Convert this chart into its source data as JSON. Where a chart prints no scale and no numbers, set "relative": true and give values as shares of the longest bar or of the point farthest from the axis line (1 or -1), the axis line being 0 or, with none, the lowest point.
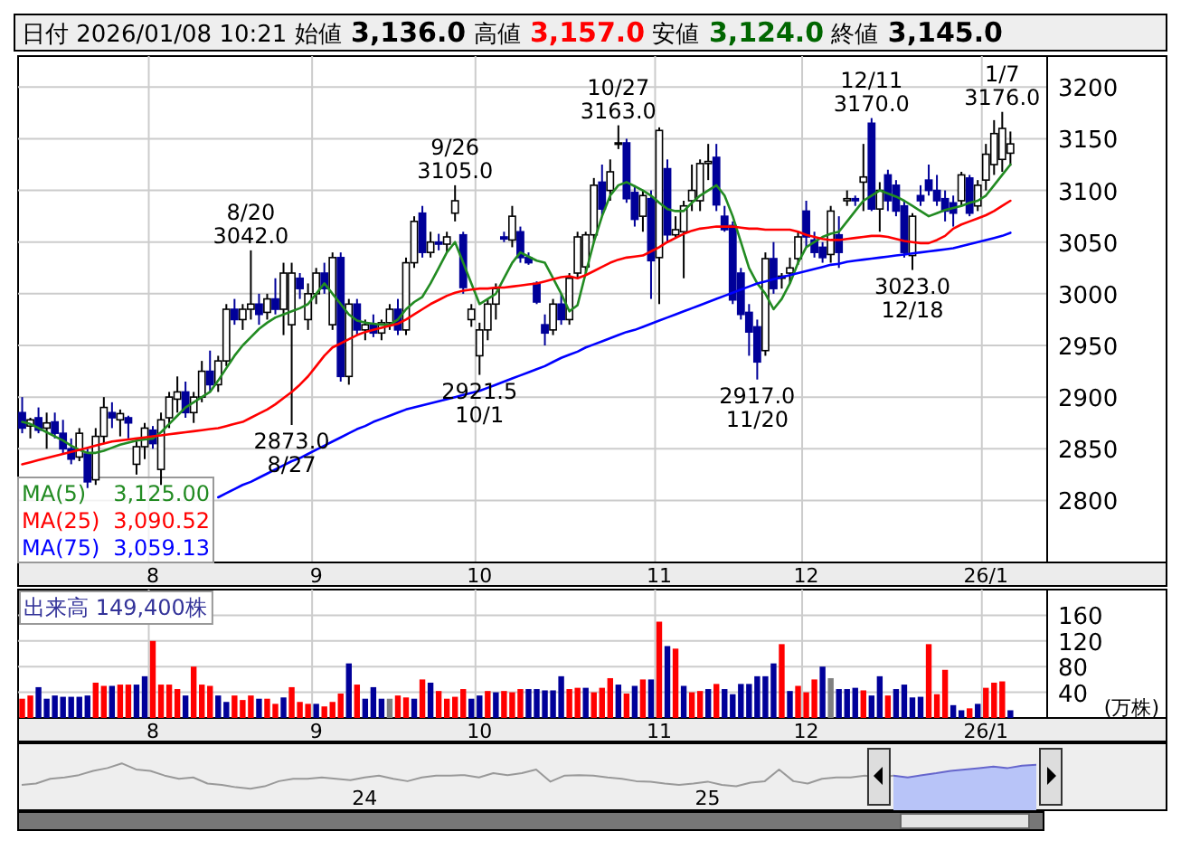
{
  "chart_data": [
    {
      "type": "candlestick",
      "title": "日付 2026/01/08 10:21 始値 3,136.0 高値 3,157.0 安値 3,124.0 終値 3,145.0",
      "categories": [
        null,
        null,
        null,
        null,
        null,
        null,
        null,
        null,
        null,
        null,
        null,
        null,
        null,
        null,
        null,
        null,
        "8",
        null,
        null,
        null,
        null,
        null,
        null,
        null,
        null,
        null,
        null,
        null,
        null,
        null,
        null,
        null,
        null,
        null,
        null,
        null,
        "9",
        null,
        null,
        null,
        null,
        null,
        null,
        null,
        null,
        null,
        null,
        null,
        null,
        null,
        null,
        null,
        null,
        null,
        null,
        null,
        "10",
        null,
        null,
        null,
        null,
        null,
        null,
        null,
        null,
        null,
        null,
        null,
        null,
        null,
        null,
        null,
        null,
        null,
        null,
        null,
        null,
        null,
        "11",
        null,
        null,
        null,
        null,
        null,
        null,
        null,
        null,
        null,
        null,
        null,
        null,
        null,
        null,
        null,
        null,
        null,
        "12",
        null,
        null,
        null,
        null,
        null,
        null,
        null,
        null,
        null,
        null,
        null,
        null,
        null,
        null,
        null,
        null,
        null,
        null,
        null,
        null,
        null,
        "26/1",
        null,
        null,
        null
      ],
      "ohlc": [
        [
          2885,
          2900,
          2865,
          2870
        ],
        [
          2872,
          2880,
          2860,
          2878
        ],
        [
          2880,
          2890,
          2865,
          2868
        ],
        [
          2870,
          2885,
          2850,
          2875
        ],
        [
          2876,
          2885,
          2860,
          2865
        ],
        [
          2865,
          2878,
          2845,
          2850
        ],
        [
          2850,
          2860,
          2835,
          2840
        ],
        [
          2842,
          2870,
          2838,
          2865
        ],
        [
          2845,
          2850,
          2812,
          2818
        ],
        [
          2820,
          2870,
          2815,
          2862
        ],
        [
          2862,
          2900,
          2855,
          2890
        ],
        [
          2885,
          2895,
          2870,
          2880
        ],
        [
          2878,
          2888,
          2862,
          2884
        ],
        [
          2880,
          2882,
          2860,
          2875
        ],
        [
          2835,
          2858,
          2825,
          2852
        ],
        [
          2852,
          2875,
          2840,
          2870
        ],
        [
          2868,
          2872,
          2850,
          2855
        ],
        [
          2830,
          2885,
          2815,
          2878
        ],
        [
          2880,
          2905,
          2870,
          2900
        ],
        [
          2898,
          2920,
          2885,
          2905
        ],
        [
          2905,
          2915,
          2880,
          2885
        ],
        [
          2885,
          2905,
          2875,
          2900
        ],
        [
          2900,
          2935,
          2895,
          2925
        ],
        [
          2925,
          2945,
          2905,
          2912
        ],
        [
          2912,
          2940,
          2905,
          2935
        ],
        [
          2935,
          2990,
          2930,
          2985
        ],
        [
          2985,
          2995,
          2970,
          2975
        ],
        [
          2975,
          2990,
          2965,
          2985
        ],
        [
          2985,
          3042,
          2975,
          2990
        ],
        [
          2990,
          3000,
          2970,
          2980
        ],
        [
          2982,
          3000,
          2975,
          2995
        ],
        [
          2995,
          3015,
          2980,
          2985
        ],
        [
          2985,
          3030,
          2960,
          3020
        ],
        [
          2970,
          3030,
          2873,
          3020
        ],
        [
          3015,
          3020,
          2995,
          3005
        ],
        [
          2975,
          3010,
          2965,
          3000
        ],
        [
          3000,
          3025,
          2990,
          3020
        ],
        [
          3020,
          3030,
          3000,
          3005
        ],
        [
          2970,
          3040,
          2965,
          3035
        ],
        [
          3035,
          3040,
          2915,
          2920
        ],
        [
          2920,
          2995,
          2912,
          2990
        ],
        [
          2990,
          2995,
          2960,
          2965
        ],
        [
          2965,
          2975,
          2955,
          2970
        ],
        [
          2970,
          2980,
          2958,
          2962
        ],
        [
          2962,
          2975,
          2955,
          2972
        ],
        [
          2972,
          2990,
          2965,
          2985
        ],
        [
          2985,
          2995,
          2960,
          2965
        ],
        [
          2965,
          3035,
          2960,
          3030
        ],
        [
          3030,
          3075,
          3025,
          3070
        ],
        [
          3078,
          3085,
          3035,
          3040
        ],
        [
          3040,
          3060,
          3035,
          3050
        ],
        [
          3050,
          3058,
          3042,
          3048
        ],
        [
          3048,
          3060,
          3040,
          3055
        ],
        [
          3078,
          3105,
          3070,
          3090
        ],
        [
          3057,
          3060,
          3000,
          3006
        ],
        [
          2975,
          2990,
          2968,
          2985
        ],
        [
          2940,
          2972,
          2921.5,
          2965
        ],
        [
          2965,
          2995,
          2955,
          2990
        ],
        [
          2990,
          3010,
          2975,
          3005
        ],
        [
          3055,
          3060,
          3050,
          3053
        ],
        [
          3052,
          3085,
          3045,
          3075
        ],
        [
          3060,
          3065,
          3030,
          3035
        ],
        [
          3035,
          3040,
          3028,
          3030
        ],
        [
          3010,
          3012,
          2990,
          2992
        ],
        [
          2970,
          2980,
          2950,
          2962
        ],
        [
          2965,
          2995,
          2960,
          2990
        ],
        [
          2990,
          3000,
          2970,
          2975
        ],
        [
          2975,
          3020,
          2970,
          3015
        ],
        [
          3020,
          3060,
          3015,
          3055
        ],
        [
          3026,
          3060,
          3020,
          3057
        ],
        [
          3057,
          3112,
          3050,
          3105
        ],
        [
          3108,
          3125,
          3075,
          3082
        ],
        [
          3100,
          3130,
          3090,
          3118
        ],
        [
          3145,
          3163,
          3140,
          3146
        ],
        [
          3146,
          3150,
          3088,
          3092
        ],
        [
          3098,
          3105,
          3065,
          3072
        ],
        [
          3075,
          3100,
          3060,
          3095
        ],
        [
          3092,
          3100,
          2995,
          3032
        ],
        [
          3035,
          3161,
          2990,
          3158
        ],
        [
          3121,
          3130,
          3050,
          3057
        ],
        [
          3057,
          3075,
          3055,
          3062
        ],
        [
          3060,
          3090,
          3015,
          3085
        ],
        [
          3090,
          3125,
          3080,
          3100
        ],
        [
          3090,
          3130,
          3080,
          3126
        ],
        [
          3126,
          3145,
          3110,
          3128
        ],
        [
          3132,
          3145,
          3080,
          3086
        ],
        [
          3075,
          3085,
          3060,
          3062
        ],
        [
          3066,
          3070,
          2990,
          2994
        ],
        [
          3020,
          3025,
          2975,
          2980
        ],
        [
          2982,
          2990,
          2940,
          2963
        ],
        [
          2968,
          2975,
          2917,
          2934
        ],
        [
          2945,
          3040,
          2940,
          3034
        ],
        [
          3034,
          3050,
          3000,
          3005
        ],
        [
          3015,
          3020,
          3005,
          3017
        ],
        [
          3020,
          3035,
          3010,
          3025
        ],
        [
          3034,
          3060,
          3028,
          3055
        ],
        [
          3080,
          3090,
          3045,
          3055
        ],
        [
          3052,
          3060,
          3035,
          3040
        ],
        [
          3045,
          3050,
          3030,
          3035
        ],
        [
          3038,
          3085,
          3030,
          3080
        ],
        [
          3057,
          3075,
          3025,
          3040
        ],
        [
          3090,
          3100,
          3085,
          3092
        ],
        [
          3092,
          3095,
          3085,
          3090
        ],
        [
          3108,
          3145,
          3080,
          3113
        ],
        [
          3165,
          3170,
          3080,
          3082
        ],
        [
          3082,
          3108,
          3060,
          3100
        ],
        [
          3115,
          3120,
          3080,
          3090
        ],
        [
          3105,
          3110,
          3075,
          3080
        ],
        [
          3085,
          3090,
          3035,
          3040
        ],
        [
          3037,
          3078,
          3023,
          3075
        ],
        [
          3095,
          3105,
          3085,
          3090
        ],
        [
          3110,
          3125,
          3095,
          3100
        ],
        [
          3100,
          3115,
          3085,
          3090
        ],
        [
          3092,
          3100,
          3070,
          3080
        ],
        [
          3088,
          3095,
          3065,
          3078
        ],
        [
          3090,
          3118,
          3085,
          3115
        ],
        [
          3112,
          3115,
          3075,
          3078
        ],
        [
          3085,
          3110,
          3080,
          3105
        ],
        [
          3110,
          3145,
          3100,
          3135
        ],
        [
          3125,
          3168,
          3115,
          3155
        ],
        [
          3130,
          3176,
          3118,
          3160
        ],
        [
          3136,
          3157,
          3124,
          3145
        ]
      ],
      "series": [
        {
          "name": "MA(5)",
          "type": "line",
          "color": "#228b22",
          "values": [
            2876,
            2874,
            2870,
            2866,
            2862,
            2858,
            2853,
            2849,
            2846,
            2846,
            2848,
            2851,
            2854,
            2856,
            2858,
            2859,
            2860,
            2866,
            2874,
            2882,
            2890,
            2895,
            2900,
            2905,
            2916,
            2928,
            2940,
            2950,
            2958,
            2966,
            2972,
            2977,
            2980,
            2983,
            2986,
            2990,
            3000,
            3010,
            3000,
            2990,
            2980,
            2974,
            2972,
            2971,
            2970,
            2970,
            2975,
            2985,
            2992,
            2997,
            3010,
            3025,
            3040,
            3050,
            3030,
            3010,
            2990,
            2995,
            3000,
            3015,
            3030,
            3040,
            3036,
            3032,
            3030,
            3015,
            3000,
            2983,
            2989,
            3020,
            3050,
            3075,
            3095,
            3105,
            3108,
            3104,
            3100,
            3095,
            3088,
            3082,
            3080,
            3080,
            3088,
            3095,
            3100,
            3105,
            3095,
            3075,
            3050,
            3025,
            3010,
            3000,
            2985,
            2995,
            3010,
            3030,
            3045,
            3050,
            3055,
            3058,
            3060,
            3070,
            3080,
            3090,
            3095,
            3100,
            3097,
            3094,
            3090,
            3085,
            3080,
            3075,
            3078,
            3081,
            3083,
            3085,
            3088,
            3090,
            3095,
            3105,
            3115,
            3125
          ]
        },
        {
          "name": "MA(25)",
          "type": "line",
          "color": "#ff0000",
          "values": [
            2835,
            2837,
            2839,
            2841,
            2843,
            2845,
            2847,
            2849,
            2851,
            2853,
            2855,
            2857,
            2858,
            2859,
            2860,
            2861,
            2862,
            2863,
            2864,
            2865,
            2866,
            2867,
            2868,
            2869,
            2870,
            2872,
            2874,
            2876,
            2880,
            2884,
            2888,
            2893,
            2899,
            2905,
            2912,
            2920,
            2930,
            2940,
            2948,
            2952,
            2956,
            2960,
            2963,
            2965,
            2967,
            2969,
            2971,
            2975,
            2980,
            2985,
            2990,
            2994,
            2998,
            3001,
            3003,
            3004,
            3005,
            3005,
            3006,
            3006,
            3007,
            3008,
            3009,
            3010,
            3012,
            3014,
            3016,
            3017,
            3015,
            3018,
            3022,
            3026,
            3030,
            3033,
            3035,
            3036,
            3037,
            3041,
            3045,
            3050,
            3054,
            3058,
            3061,
            3063,
            3064,
            3065,
            3065,
            3065,
            3064,
            3063,
            3063,
            3062,
            3062,
            3062,
            3062,
            3060,
            3057,
            3055,
            3053,
            3052,
            3052,
            3053,
            3054,
            3055,
            3056,
            3056,
            3055,
            3053,
            3051,
            3050,
            3049,
            3049,
            3052,
            3056,
            3063,
            3067,
            3070,
            3073,
            3076,
            3080,
            3085,
            3090
          ]
        },
        {
          "name": "MA(75)",
          "type": "line",
          "color": "#0000ff",
          "values": [
            null,
            null,
            null,
            null,
            null,
            null,
            null,
            null,
            null,
            null,
            null,
            null,
            null,
            null,
            null,
            null,
            null,
            null,
            null,
            null,
            null,
            null,
            null,
            null,
            2803,
            2807,
            2811,
            2815,
            2818,
            2822,
            2826,
            2830,
            2834,
            2838,
            2841,
            2845,
            2849,
            2853,
            2857,
            2861,
            2865,
            2869,
            2872,
            2876,
            2879,
            2882,
            2885,
            2888,
            2890,
            2892,
            2894,
            2896,
            2898,
            2900,
            2902,
            2904,
            2906,
            2909,
            2912,
            2915,
            2918,
            2921,
            2924,
            2927,
            2930,
            2934,
            2938,
            2941,
            2944,
            2948,
            2951,
            2954,
            2957,
            2960,
            2963,
            2965,
            2968,
            2971,
            2974,
            2977,
            2980,
            2983,
            2986,
            2989,
            2992,
            2995,
            2998,
            3001,
            3004,
            3007,
            3010,
            3012,
            3014,
            3016,
            3018,
            3020,
            3022,
            3024,
            3026,
            3028,
            3029,
            3031,
            3032,
            3033,
            3034,
            3035,
            3036,
            3037,
            3038,
            3039,
            3040,
            3041,
            3042,
            3043,
            3044,
            3046,
            3048,
            3050,
            3052,
            3054,
            3056,
            3059
          ]
        }
      ],
      "ylim": [
        2740,
        3230
      ],
      "yticks": [
        2800,
        2850,
        2900,
        2950,
        3000,
        3050,
        3100,
        3150,
        3200
      ],
      "grid": true,
      "legend": "bottom left",
      "annotations": [
        {
          "text": "8/20\n3042.0",
          "y": 3042
        },
        {
          "text": "2873.0\n8/27",
          "y": 2873
        },
        {
          "text": "9/26\n3105.0",
          "y": 3105
        },
        {
          "text": "2921.5\n10/1",
          "y": 2921.5
        },
        {
          "text": "10/27\n3163.0",
          "y": 3163
        },
        {
          "text": "2917.0\n11/20",
          "y": 2917
        },
        {
          "text": "12/11\n3170.0",
          "y": 3170
        },
        {
          "text": "3023.0\n12/18",
          "y": 3023
        },
        {
          "text": "1/7\n3176.0",
          "y": 3176
        },
        "3,125.00",
        "3,090.52",
        "3,059.13"
      ]
    },
    {
      "type": "bar",
      "title": "出来高  149,400株",
      "ylabel": "(万株)",
      "categories": [
        null,
        null,
        null,
        null,
        null,
        null,
        null,
        null,
        null,
        null,
        null,
        null,
        null,
        null,
        null,
        null,
        "8",
        null,
        null,
        null,
        null,
        null,
        null,
        null,
        null,
        null,
        null,
        null,
        null,
        null,
        null,
        null,
        null,
        null,
        null,
        null,
        "9",
        null,
        null,
        null,
        null,
        null,
        null,
        null,
        null,
        null,
        null,
        null,
        null,
        null,
        null,
        null,
        null,
        null,
        null,
        null,
        "10",
        null,
        null,
        null,
        null,
        null,
        null,
        null,
        null,
        null,
        null,
        null,
        null,
        null,
        null,
        null,
        null,
        null,
        null,
        null,
        null,
        null,
        "11",
        null,
        null,
        null,
        null,
        null,
        null,
        null,
        null,
        null,
        null,
        null,
        null,
        null,
        null,
        null,
        null,
        null,
        "12",
        null,
        null,
        null,
        null,
        null,
        null,
        null,
        null,
        null,
        null,
        null,
        null,
        null,
        null,
        null,
        null,
        null,
        null,
        null,
        null,
        null,
        "26/1",
        null,
        null,
        null
      ],
      "values": [
        30,
        35,
        48,
        30,
        35,
        33,
        33,
        33,
        35,
        55,
        50,
        50,
        52,
        52,
        52,
        65,
        120,
        52,
        52,
        45,
        35,
        80,
        52,
        50,
        35,
        25,
        35,
        28,
        35,
        30,
        30,
        22,
        32,
        48,
        25,
        22,
        22,
        18,
        25,
        38,
        85,
        52,
        30,
        48,
        30,
        30,
        35,
        32,
        30,
        60,
        55,
        42,
        30,
        33,
        45,
        30,
        35,
        42,
        40,
        42,
        40,
        45,
        45,
        45,
        43,
        43,
        65,
        45,
        47,
        47,
        40,
        47,
        62,
        52,
        38,
        50,
        60,
        60,
        150,
        112,
        108,
        50,
        40,
        42,
        45,
        53,
        45,
        37,
        53,
        53,
        65,
        65,
        85,
        115,
        42,
        50,
        40,
        60,
        80,
        62,
        45,
        45,
        47,
        43,
        35,
        65,
        35,
        45,
        52,
        32,
        33,
        115,
        37,
        75,
        20,
        12,
        15,
        22,
        47,
        55,
        57,
        12
      ],
      "colors": [
        "#ff0000",
        "#ff0000",
        "#000099",
        "#000099",
        "#000099",
        "#000099",
        "#000099",
        "#000099",
        "#000099",
        "#ff0000",
        "#ff0000",
        "#000099",
        "#ff0000",
        "#ff0000",
        "#000099",
        "#000099",
        "#ff0000",
        "#ff0000",
        "#ff0000",
        "#ff0000",
        "#000099",
        "#ff0000",
        "#ff0000",
        "#ff0000",
        "#000099",
        "#000099",
        "#ff0000",
        "#ff0000",
        "#ff0000",
        "#000099",
        "#ff0000",
        "#ff0000",
        "#000099",
        "#ff0000",
        "#ff0000",
        "#ff0000",
        "#000099",
        "#ff0000",
        "#ff0000",
        "#ff0000",
        "#000099",
        "#ff0000",
        "#000099",
        "#000099",
        "#000099",
        "#808080",
        "#ff0000",
        "#ff0000",
        "#000099",
        "#ff0000",
        "#000099",
        "#ff0000",
        "#ff0000",
        "#ff0000",
        "#ff0000",
        "#000099",
        "#000099",
        "#ff0000",
        "#000099",
        "#ff0000",
        "#ff0000",
        "#ff0000",
        "#000099",
        "#000099",
        "#000099",
        "#000099",
        "#000099",
        "#ff0000",
        "#ff0000",
        "#000099",
        "#ff0000",
        "#ff0000",
        "#ff0000",
        "#000099",
        "#ff0000",
        "#000099",
        "#ff0000",
        "#000099",
        "#ff0000",
        "#000099",
        "#ff0000",
        "#000099",
        "#ff0000",
        "#ff0000",
        "#000099",
        "#ff0000",
        "#000099",
        "#000099",
        "#000099",
        "#000099",
        "#000099",
        "#000099",
        "#000099",
        "#ff0000",
        "#000099",
        "#ff0000",
        "#ff0000",
        "#ff0000",
        "#000099",
        "#808080",
        "#000099",
        "#000099",
        "#000099",
        "#ff0000",
        "#000099",
        "#000099",
        "#ff0000",
        "#000099",
        "#000099",
        "#000099",
        "#000099",
        "#ff0000",
        "#ff0000",
        "#ff0000",
        "#000099",
        "#000099",
        "#ff0000",
        "#000099",
        "#ff0000",
        "#ff0000",
        "#ff0000",
        "#000099"
      ],
      "ylim": [
        0,
        200
      ],
      "yticks": [
        40,
        80,
        120,
        160
      ],
      "grid": true
    },
    {
      "type": "area",
      "relative": true,
      "categories": [
        null,
        null,
        null,
        null,
        null,
        null,
        null,
        null,
        null,
        null,
        null,
        null,
        null,
        null,
        null,
        null,
        null,
        null,
        null,
        null,
        null,
        null,
        null,
        null,
        "24",
        null,
        null,
        null,
        null,
        null,
        null,
        null,
        null,
        null,
        null,
        null,
        null,
        null,
        null,
        null,
        null,
        null,
        null,
        null,
        null,
        null,
        null,
        null,
        "25",
        null,
        null,
        null,
        null,
        null,
        null,
        null,
        null,
        null,
        null,
        null,
        null,
        null,
        null,
        null,
        null,
        null,
        null,
        null,
        null,
        null,
        null,
        null
      ],
      "series": [
        {
          "type": "line",
          "color": "#999999",
          "values": [
            0.54,
            0.57,
            0.67,
            0.7,
            0.75,
            0.84,
            0.9,
            1.0,
            0.87,
            0.84,
            0.74,
            0.67,
            0.7,
            0.57,
            0.54,
            0.49,
            0.46,
            0.51,
            0.62,
            0.67,
            0.67,
            0.7,
            0.67,
            0.64,
            0.7,
            0.74,
            0.67,
            0.62,
            0.7,
            0.74,
            0.74,
            0.75,
            0.7,
            0.79,
            0.75,
            0.79,
            0.87,
            0.61,
            0.74,
            0.75,
            0.74,
            0.7,
            0.67,
            0.62,
            0.61,
            0.57,
            0.54,
            0.57,
            0.61,
            0.54,
            0.51,
            0.59,
            0.62,
            0.87,
            0.62,
            0.57,
            0.67,
            0.7,
            0.7,
            0.74,
            0.7,
            0.74,
            null,
            null,
            null,
            null,
            null,
            null,
            null,
            null,
            null,
            null
          ]
        },
        {
          "type": "area",
          "color": "#6666cc",
          "values": [
            null,
            null,
            null,
            null,
            null,
            null,
            null,
            null,
            null,
            null,
            null,
            null,
            null,
            null,
            null,
            null,
            null,
            null,
            null,
            null,
            null,
            null,
            null,
            null,
            null,
            null,
            null,
            null,
            null,
            null,
            null,
            null,
            null,
            null,
            null,
            null,
            null,
            null,
            null,
            null,
            null,
            null,
            null,
            null,
            null,
            null,
            null,
            null,
            null,
            null,
            null,
            null,
            null,
            null,
            null,
            null,
            null,
            null,
            null,
            null,
            null,
            0.74,
            0.7,
            0.75,
            0.79,
            0.84,
            0.87,
            0.9,
            0.93,
            0.9,
            0.95,
            0.97
          ]
        }
      ]
    }
  ]
}
